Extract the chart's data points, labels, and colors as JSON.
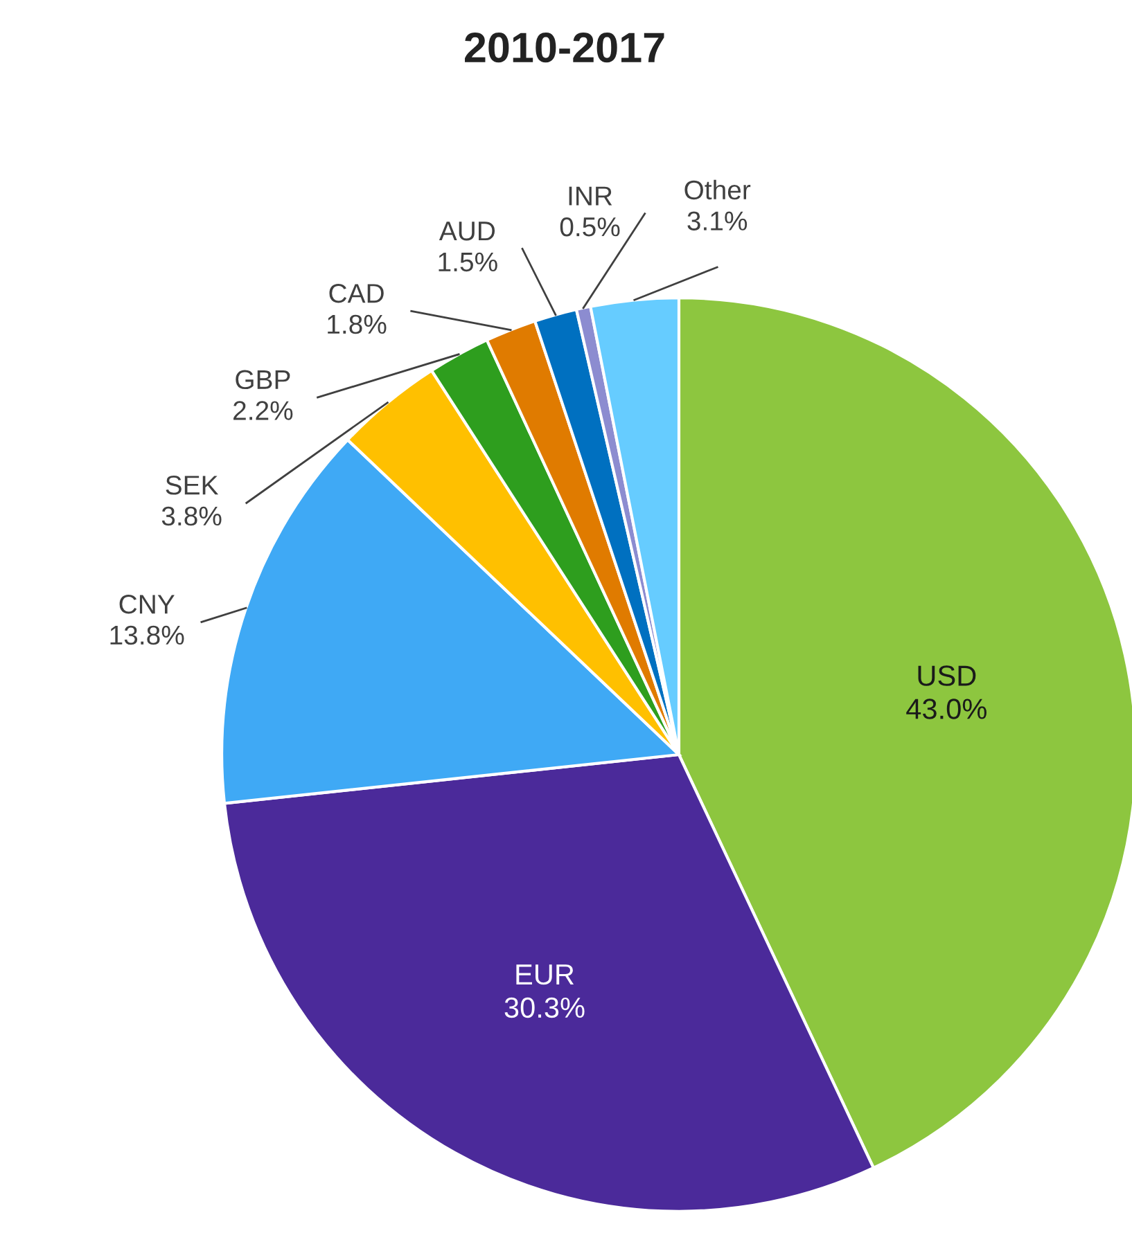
{
  "chart_data": {
    "type": "pie",
    "title": "2010-2017",
    "categories": [
      "USD",
      "EUR",
      "CNY",
      "SEK",
      "GBP",
      "CAD",
      "AUD",
      "INR",
      "Other"
    ],
    "values": [
      43.0,
      30.3,
      13.8,
      3.8,
      2.2,
      1.8,
      1.5,
      0.5,
      3.1
    ],
    "colors": [
      "#8dc63f",
      "#4b2a9a",
      "#3fa9f5",
      "#ffc000",
      "#2e9e1e",
      "#e07b00",
      "#0070c0",
      "#8c8cd0",
      "#66ccff"
    ],
    "value_labels": [
      "43.0%",
      "30.3%",
      "13.8%",
      "3.8%",
      "2.2%",
      "1.8%",
      "1.5%",
      "0.5%",
      "3.1%"
    ]
  }
}
